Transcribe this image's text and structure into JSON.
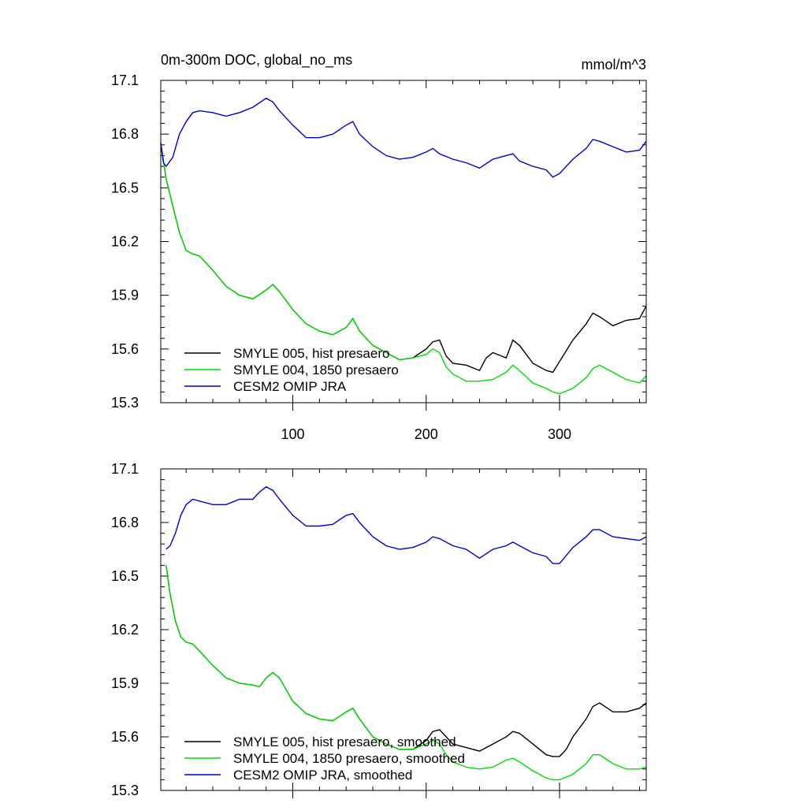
{
  "chart_data": [
    {
      "type": "line",
      "title": "0m-300m DOC, global_no_ms",
      "units": "mmol/m^3",
      "xlim": [
        1,
        365
      ],
      "ylim": [
        15.3,
        17.1
      ],
      "x_ticks": [
        100,
        200,
        300
      ],
      "y_ticks": [
        15.3,
        15.6,
        15.9,
        16.2,
        16.5,
        16.8,
        17.1
      ],
      "y_tick_labels": [
        "15.3",
        "15.6",
        "15.9",
        "16.2",
        "16.5",
        "16.8",
        "17.1"
      ],
      "x_tick_labels": [
        "100",
        "200",
        "300"
      ],
      "grid": false,
      "legend_position": "bottom-left",
      "series": [
        {
          "name": "SMYLE 005, hist presaero",
          "color": "#000000",
          "x": [
            1,
            5,
            10,
            15,
            20,
            25,
            30,
            40,
            50,
            60,
            70,
            80,
            85,
            90,
            100,
            110,
            120,
            130,
            140,
            145,
            150,
            160,
            170,
            180,
            190,
            200,
            205,
            210,
            215,
            220,
            230,
            240,
            245,
            250,
            260,
            265,
            270,
            280,
            290,
            295,
            300,
            310,
            320,
            325,
            330,
            340,
            350,
            360,
            365
          ],
          "y": [
            16.75,
            16.55,
            16.4,
            16.25,
            16.15,
            16.13,
            16.12,
            16.04,
            15.95,
            15.9,
            15.88,
            15.93,
            15.96,
            15.92,
            15.82,
            15.74,
            15.7,
            15.68,
            15.72,
            15.77,
            15.7,
            15.62,
            15.58,
            15.54,
            15.55,
            15.6,
            15.64,
            15.65,
            15.56,
            15.52,
            15.51,
            15.48,
            15.55,
            15.58,
            15.55,
            15.65,
            15.62,
            15.52,
            15.48,
            15.47,
            15.53,
            15.65,
            15.74,
            15.8,
            15.78,
            15.73,
            15.76,
            15.77,
            15.84
          ]
        },
        {
          "name": "SMYLE 004, 1850 presaero",
          "color": "#00dd00",
          "x": [
            1,
            5,
            10,
            15,
            20,
            25,
            30,
            40,
            50,
            60,
            70,
            80,
            85,
            90,
            100,
            110,
            120,
            130,
            140,
            145,
            150,
            160,
            170,
            180,
            190,
            200,
            205,
            210,
            215,
            220,
            230,
            240,
            250,
            260,
            265,
            270,
            280,
            290,
            295,
            300,
            310,
            320,
            325,
            330,
            340,
            350,
            360,
            365
          ],
          "y": [
            16.75,
            16.55,
            16.4,
            16.25,
            16.15,
            16.13,
            16.12,
            16.04,
            15.95,
            15.9,
            15.88,
            15.93,
            15.96,
            15.92,
            15.82,
            15.74,
            15.7,
            15.68,
            15.72,
            15.77,
            15.7,
            15.62,
            15.58,
            15.54,
            15.55,
            15.57,
            15.6,
            15.58,
            15.5,
            15.46,
            15.42,
            15.42,
            15.43,
            15.47,
            15.51,
            15.48,
            15.41,
            15.38,
            15.36,
            15.35,
            15.38,
            15.44,
            15.49,
            15.51,
            15.47,
            15.43,
            15.41,
            15.45
          ]
        },
        {
          "name": "CESM2 OMIP JRA",
          "color": "#0000cc",
          "x": [
            1,
            3,
            5,
            10,
            15,
            20,
            25,
            30,
            40,
            50,
            60,
            70,
            80,
            85,
            90,
            100,
            110,
            120,
            130,
            140,
            145,
            150,
            160,
            170,
            180,
            190,
            200,
            205,
            210,
            220,
            230,
            240,
            250,
            260,
            265,
            270,
            280,
            290,
            295,
            300,
            310,
            320,
            325,
            330,
            340,
            350,
            360,
            365
          ],
          "y": [
            16.75,
            16.64,
            16.62,
            16.67,
            16.8,
            16.87,
            16.92,
            16.93,
            16.92,
            16.9,
            16.92,
            16.95,
            17.0,
            16.98,
            16.93,
            16.85,
            16.78,
            16.78,
            16.8,
            16.85,
            16.87,
            16.8,
            16.73,
            16.68,
            16.66,
            16.67,
            16.7,
            16.72,
            16.69,
            16.66,
            16.64,
            16.61,
            16.66,
            16.68,
            16.69,
            16.65,
            16.62,
            16.6,
            16.56,
            16.58,
            16.66,
            16.72,
            16.77,
            16.76,
            16.73,
            16.7,
            16.71,
            16.76
          ]
        }
      ]
    },
    {
      "type": "line",
      "title": "",
      "xlim": [
        1,
        365
      ],
      "ylim": [
        15.3,
        17.1
      ],
      "x_ticks": [
        100,
        200,
        300
      ],
      "y_ticks": [
        15.3,
        15.6,
        15.9,
        16.2,
        16.5,
        16.8,
        17.1
      ],
      "y_tick_labels": [
        "15.3",
        "15.6",
        "15.9",
        "16.2",
        "16.5",
        "16.8",
        "17.1"
      ],
      "grid": false,
      "legend_position": "bottom-left",
      "series": [
        {
          "name": "SMYLE 005, hist presaero, smoothed",
          "color": "#000000",
          "x": [
            5,
            8,
            12,
            16,
            20,
            25,
            30,
            40,
            50,
            60,
            70,
            75,
            80,
            85,
            90,
            100,
            110,
            120,
            130,
            140,
            145,
            150,
            160,
            170,
            180,
            190,
            200,
            205,
            210,
            215,
            220,
            230,
            240,
            250,
            255,
            260,
            265,
            270,
            280,
            290,
            295,
            300,
            305,
            310,
            320,
            325,
            330,
            340,
            350,
            360,
            365
          ],
          "y": [
            16.56,
            16.4,
            16.25,
            16.16,
            16.13,
            16.12,
            16.08,
            16.0,
            15.93,
            15.9,
            15.89,
            15.88,
            15.93,
            15.96,
            15.93,
            15.8,
            15.73,
            15.7,
            15.69,
            15.74,
            15.76,
            15.7,
            15.6,
            15.56,
            15.53,
            15.53,
            15.58,
            15.63,
            15.64,
            15.6,
            15.56,
            15.54,
            15.52,
            15.56,
            15.58,
            15.6,
            15.63,
            15.62,
            15.56,
            15.5,
            15.49,
            15.49,
            15.53,
            15.6,
            15.7,
            15.77,
            15.79,
            15.74,
            15.74,
            15.76,
            15.79
          ]
        },
        {
          "name": "SMYLE 004, 1850 presaero, smoothed",
          "color": "#00dd00",
          "x": [
            5,
            8,
            12,
            16,
            20,
            25,
            30,
            40,
            50,
            60,
            70,
            75,
            80,
            85,
            90,
            100,
            110,
            120,
            130,
            140,
            145,
            150,
            160,
            170,
            180,
            190,
            200,
            205,
            210,
            215,
            220,
            230,
            240,
            250,
            260,
            265,
            270,
            280,
            290,
            295,
            300,
            310,
            320,
            325,
            330,
            340,
            350,
            360,
            365
          ],
          "y": [
            16.56,
            16.4,
            16.25,
            16.16,
            16.13,
            16.12,
            16.08,
            16.0,
            15.93,
            15.9,
            15.89,
            15.88,
            15.93,
            15.96,
            15.93,
            15.8,
            15.73,
            15.7,
            15.69,
            15.74,
            15.76,
            15.7,
            15.6,
            15.56,
            15.53,
            15.53,
            15.56,
            15.58,
            15.56,
            15.5,
            15.46,
            15.43,
            15.42,
            15.43,
            15.47,
            15.48,
            15.46,
            15.41,
            15.37,
            15.36,
            15.36,
            15.39,
            15.45,
            15.5,
            15.5,
            15.45,
            15.42,
            15.42,
            15.43
          ]
        },
        {
          "name": "CESM2 OMIP JRA, smoothed",
          "color": "#0000cc",
          "x": [
            5,
            8,
            12,
            16,
            20,
            25,
            30,
            40,
            50,
            60,
            70,
            75,
            80,
            85,
            90,
            100,
            110,
            120,
            130,
            140,
            145,
            150,
            160,
            170,
            180,
            190,
            200,
            205,
            210,
            220,
            230,
            240,
            250,
            260,
            265,
            270,
            280,
            290,
            295,
            300,
            310,
            320,
            325,
            330,
            340,
            350,
            360,
            365
          ],
          "y": [
            16.65,
            16.67,
            16.74,
            16.84,
            16.9,
            16.93,
            16.92,
            16.9,
            16.9,
            16.93,
            16.93,
            16.97,
            17.0,
            16.98,
            16.93,
            16.84,
            16.78,
            16.78,
            16.79,
            16.84,
            16.85,
            16.8,
            16.72,
            16.67,
            16.65,
            16.66,
            16.69,
            16.72,
            16.71,
            16.67,
            16.65,
            16.6,
            16.65,
            16.67,
            16.69,
            16.67,
            16.63,
            16.61,
            16.57,
            16.57,
            16.66,
            16.72,
            16.76,
            16.76,
            16.72,
            16.71,
            16.7,
            16.72
          ]
        }
      ]
    }
  ]
}
